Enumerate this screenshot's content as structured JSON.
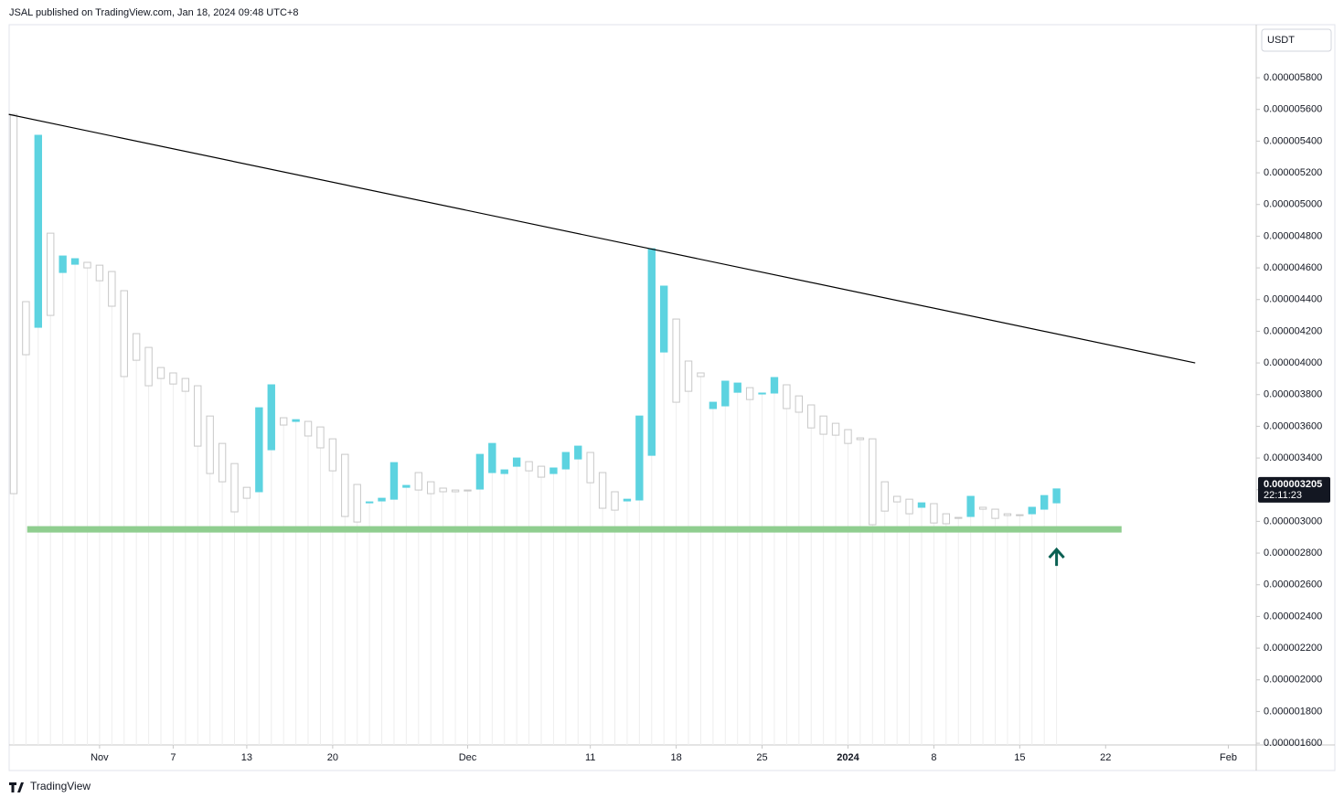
{
  "chart_data": {
    "type": "candlestick",
    "title": "JSAL published on TradingView.com, Jan 18, 2024 09:48 UTC+8",
    "currency": "USDT",
    "brand": "TradingView",
    "up_color": "#5dd3e0",
    "down_color": "#ffffff",
    "x": [
      0,
      1,
      2,
      3,
      4,
      5,
      6,
      7,
      8,
      9,
      10,
      11,
      12,
      13,
      14,
      15,
      16,
      17,
      18,
      19,
      20,
      21,
      22,
      23,
      24,
      25,
      26,
      27,
      28,
      29,
      30,
      31,
      32,
      33,
      34,
      35,
      36,
      37,
      38,
      39,
      40,
      41,
      42,
      43,
      44,
      45,
      46,
      47,
      48,
      49,
      50,
      51,
      52,
      53,
      54,
      55,
      56,
      57,
      58,
      59,
      60,
      61,
      62,
      63,
      64,
      65,
      66,
      67,
      68,
      69,
      70,
      71,
      72,
      73,
      74,
      75,
      76,
      77,
      78,
      79,
      80,
      81,
      82,
      83,
      84,
      85
    ],
    "open": [
      5.569e-06,
      4.387e-06,
      4.225e-06,
      4.819e-06,
      4.571e-06,
      4.623e-06,
      4.635e-06,
      4.617e-06,
      4.577e-06,
      4.456e-06,
      4.185e-06,
      4.098e-06,
      3.971e-06,
      3.937e-06,
      3.902e-06,
      3.856e-06,
      3.665e-06,
      3.492e-06,
      3.365e-06,
      3.215e-06,
      3.187e-06,
      3.452e-06,
      3.654e-06,
      3.631e-06,
      3.631e-06,
      3.596e-06,
      3.521e-06,
      3.423e-06,
      3.233e-06,
      3.117e-06,
      3.129e-06,
      3.14e-06,
      3.215e-06,
      3.308e-06,
      3.25e-06,
      3.21e-06,
      3.198e-06,
      3.198e-06,
      3.204e-06,
      3.308e-06,
      3.302e-06,
      3.348e-06,
      3.377e-06,
      3.348e-06,
      3.302e-06,
      3.331e-06,
      3.394e-06,
      3.435e-06,
      3.308e-06,
      3.187e-06,
      3.129e-06,
      3.135e-06,
      3.417e-06,
      4.069e-06,
      4.277e-06,
      4.012e-06,
      3.937e-06,
      3.712e-06,
      3.729e-06,
      3.815e-06,
      3.844e-06,
      3.804e-06,
      3.81e-06,
      3.862e-06,
      3.792e-06,
      3.735e-06,
      3.665e-06,
      3.619e-06,
      3.579e-06,
      3.527e-06,
      3.521e-06,
      3.25e-06,
      3.158e-06,
      3.14e-06,
      3.089e-06,
      3.112e-06,
      3.048e-06,
      3.025e-06,
      3.031e-06,
      3.089e-06,
      3.077e-06,
      3.048e-06,
      3.042e-06,
      3.048e-06,
      3.077e-06,
      3.117e-06
    ],
    "close": [
      3.175e-06,
      4.052e-06,
      5.437e-06,
      4.3e-06,
      4.675e-06,
      4.658e-06,
      4.6e-06,
      4.519e-06,
      4.358e-06,
      3.914e-06,
      4.017e-06,
      3.856e-06,
      3.902e-06,
      3.867e-06,
      3.821e-06,
      3.475e-06,
      3.302e-06,
      3.25e-06,
      3.06e-06,
      3.146e-06,
      3.717e-06,
      3.862e-06,
      3.608e-06,
      3.642e-06,
      3.539e-06,
      3.464e-06,
      3.319e-06,
      3.031e-06,
      2.996e-06,
      3.123e-06,
      3.146e-06,
      3.371e-06,
      3.227e-06,
      3.198e-06,
      3.175e-06,
      3.187e-06,
      3.187e-06,
      3.192e-06,
      3.423e-06,
      3.492e-06,
      3.325e-06,
      3.4e-06,
      3.319e-06,
      3.279e-06,
      3.337e-06,
      3.435e-06,
      3.475e-06,
      3.244e-06,
      3.083e-06,
      3.071e-06,
      3.14e-06,
      3.665e-06,
      4.721e-06,
      4.485e-06,
      3.752e-06,
      3.821e-06,
      3.914e-06,
      3.752e-06,
      3.885e-06,
      3.873e-06,
      3.769e-06,
      3.81e-06,
      3.908e-06,
      3.712e-06,
      3.689e-06,
      3.59e-06,
      3.55e-06,
      3.544e-06,
      3.492e-06,
      3.516e-06,
      2.979e-06,
      3.065e-06,
      3.123e-06,
      3.048e-06,
      3.117e-06,
      2.99e-06,
      2.985e-06,
      3.019e-06,
      3.158e-06,
      3.077e-06,
      3.019e-06,
      3.037e-06,
      3.037e-06,
      3.089e-06,
      3.163e-06,
      3.205e-06
    ],
    "last_label": "0.000003205",
    "countdown": "22:11:23",
    "trendline": {
      "x": [
        -0.4,
        96.3
      ],
      "y": [
        5.569e-06,
        4e-06
      ],
      "color": "#000000"
    },
    "support": {
      "x": [
        1.1,
        90.3
      ],
      "y": 2.95e-06,
      "color": "#8fce8f"
    },
    "arrow_color": "#0b6153",
    "xlim": [
      -0.37,
      101.2
    ],
    "ylim": [
      1.589e-06,
      6.135e-06
    ],
    "xticks": [
      {
        "value": 7,
        "label": "Nov"
      },
      {
        "value": 13,
        "label": "7"
      },
      {
        "value": 19,
        "label": "13"
      },
      {
        "value": 26,
        "label": "20"
      },
      {
        "value": 37,
        "label": "Dec"
      },
      {
        "value": 47,
        "label": "11"
      },
      {
        "value": 54,
        "label": "18"
      },
      {
        "value": 61,
        "label": "25"
      },
      {
        "value": 68,
        "label": "2024"
      },
      {
        "value": 75,
        "label": "8"
      },
      {
        "value": 82,
        "label": "15"
      },
      {
        "value": 89,
        "label": "22"
      },
      {
        "value": 99,
        "label": "Feb"
      }
    ],
    "yticks": [
      {
        "value": 5.8e-06,
        "label": "0.000005800"
      },
      {
        "value": 5.6e-06,
        "label": "0.000005600"
      },
      {
        "value": 5.4e-06,
        "label": "0.000005400"
      },
      {
        "value": 5.2e-06,
        "label": "0.000005200"
      },
      {
        "value": 5e-06,
        "label": "0.000005000"
      },
      {
        "value": 4.8e-06,
        "label": "0.000004800"
      },
      {
        "value": 4.6e-06,
        "label": "0.000004600"
      },
      {
        "value": 4.4e-06,
        "label": "0.000004400"
      },
      {
        "value": 4.2e-06,
        "label": "0.000004200"
      },
      {
        "value": 4e-06,
        "label": "0.000004000"
      },
      {
        "value": 3.8e-06,
        "label": "0.000003800"
      },
      {
        "value": 3.6e-06,
        "label": "0.000003600"
      },
      {
        "value": 3.4e-06,
        "label": "0.000003400"
      },
      {
        "value": 3.2e-06,
        "label": "0.000003200"
      },
      {
        "value": 3e-06,
        "label": "0.000003000"
      },
      {
        "value": 2.8e-06,
        "label": "0.000002800"
      },
      {
        "value": 2.6e-06,
        "label": "0.000002600"
      },
      {
        "value": 2.4e-06,
        "label": "0.000002400"
      },
      {
        "value": 2.2e-06,
        "label": "0.000002200"
      },
      {
        "value": 2e-06,
        "label": "0.000002000"
      },
      {
        "value": 1.8e-06,
        "label": "0.000001800"
      },
      {
        "value": 1.6e-06,
        "label": "0.000001600"
      }
    ]
  }
}
